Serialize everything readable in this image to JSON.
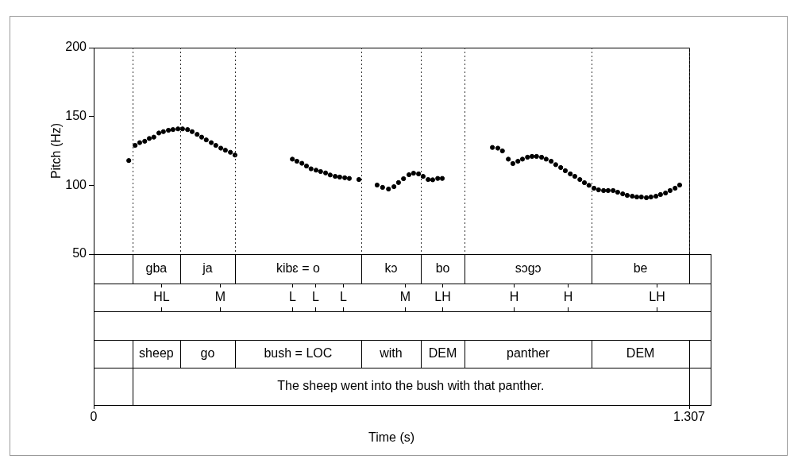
{
  "chart_data": {
    "type": "scatter",
    "ylabel": "Pitch (Hz)",
    "xlabel": "Time (s)",
    "xlim": [
      0,
      1.307
    ],
    "xticks": [
      0,
      1.307
    ],
    "ylim": [
      50,
      200
    ],
    "yticks": [
      50,
      100,
      150,
      200
    ],
    "grid": false,
    "color": "#000000",
    "marker": "circle",
    "x": [
      0.077,
      0.091,
      0.101,
      0.112,
      0.122,
      0.132,
      0.143,
      0.153,
      0.164,
      0.174,
      0.185,
      0.195,
      0.206,
      0.216,
      0.227,
      0.237,
      0.247,
      0.258,
      0.268,
      0.279,
      0.289,
      0.3,
      0.31,
      0.436,
      0.446,
      0.457,
      0.467,
      0.477,
      0.488,
      0.498,
      0.509,
      0.519,
      0.53,
      0.54,
      0.551,
      0.561,
      0.582,
      0.622,
      0.634,
      0.647,
      0.659,
      0.669,
      0.68,
      0.692,
      0.702,
      0.713,
      0.723,
      0.734,
      0.744,
      0.755,
      0.765,
      0.875,
      0.887,
      0.897,
      0.91,
      0.92,
      0.931,
      0.941,
      0.952,
      0.962,
      0.972,
      0.983,
      0.993,
      1.004,
      1.014,
      1.025,
      1.035,
      1.046,
      1.056,
      1.067,
      1.077,
      1.087,
      1.098,
      1.108,
      1.119,
      1.129,
      1.14,
      1.15,
      1.161,
      1.171,
      1.182,
      1.192,
      1.202,
      1.213,
      1.223,
      1.234,
      1.244,
      1.255,
      1.265,
      1.276,
      1.286
    ],
    "values": [
      118,
      129,
      131,
      132,
      134,
      135,
      138,
      139,
      140,
      140.5,
      141,
      141,
      140.5,
      139,
      137,
      135,
      133,
      131,
      129,
      127,
      125.5,
      124,
      122,
      119,
      117.5,
      116,
      114,
      112,
      111,
      110,
      109,
      107.5,
      106.5,
      106,
      105.5,
      105,
      104.2,
      100.2,
      98.5,
      97.3,
      99,
      102,
      104.8,
      107.7,
      108.8,
      108.3,
      106.5,
      104.2,
      104,
      105,
      105,
      127.5,
      127,
      125,
      119,
      115.8,
      117.5,
      119,
      120.4,
      121,
      121,
      120.4,
      119,
      117.5,
      115,
      112.9,
      110.6,
      108.3,
      106.5,
      104.2,
      101.9,
      100,
      97.9,
      96.7,
      96.2,
      96.2,
      96.2,
      95,
      93.8,
      92.7,
      92.1,
      91.5,
      91.5,
      91,
      91.5,
      92.1,
      93.3,
      94.4,
      96.2,
      97.9,
      100.2
    ],
    "tiers": [
      {
        "kind": "interval",
        "boundaries": [
          0.085,
          0.19,
          0.31,
          0.587,
          0.718,
          0.814,
          1.093,
          1.307
        ],
        "labels": [
          "gba",
          "ja",
          "kibɛ = o",
          "kɔ",
          "bo",
          "sɔgɔ",
          "be"
        ],
        "boundaries_in_plot": true
      },
      {
        "kind": "point",
        "times": [
          0.148,
          0.277,
          0.436,
          0.486,
          0.547,
          0.683,
          0.765,
          0.922,
          1.04,
          1.236
        ],
        "labels": [
          "HL",
          "M",
          "L",
          "L",
          "L",
          "M",
          "LH",
          "H",
          "H",
          "LH"
        ]
      },
      {
        "kind": "interval",
        "boundaries": [],
        "labels": []
      },
      {
        "kind": "interval",
        "boundaries": [
          0.085,
          0.19,
          0.31,
          0.587,
          0.718,
          0.814,
          1.093,
          1.307
        ],
        "labels": [
          "sheep",
          "go",
          "bush = LOC",
          "with",
          "DEM",
          "panther",
          "DEM"
        ]
      },
      {
        "kind": "interval",
        "boundaries": [
          0.085,
          1.307
        ],
        "labels": [
          "The sheep went into the bush with that panther."
        ]
      }
    ]
  }
}
